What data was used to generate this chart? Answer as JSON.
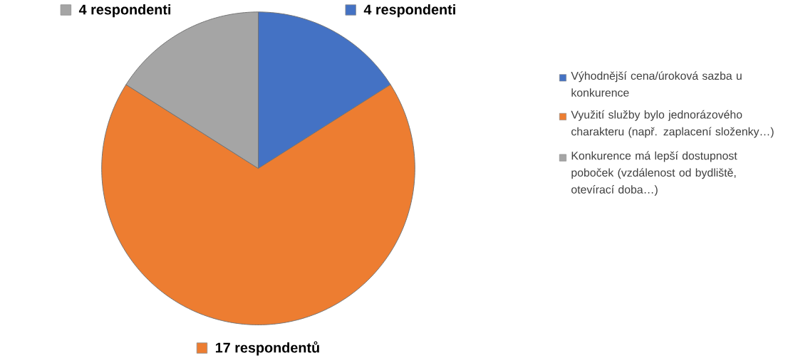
{
  "chart_data": {
    "type": "pie",
    "categories": [
      "Výhodnější cena/úroková sazba u konkurence",
      "Využití služby bylo jednorázového charakteru (např. zaplacení složenky…)",
      "Konkurence má lepší dostupnost poboček (vzdálenost od bydliště, otevírací doba…)"
    ],
    "values": [
      4,
      17,
      4
    ],
    "colors": [
      "#4472c4",
      "#ed7d31",
      "#a5a5a5"
    ],
    "value_labels": [
      "4 respondenti",
      "17 respondentů",
      "4 respondenti"
    ],
    "legend": "right"
  }
}
